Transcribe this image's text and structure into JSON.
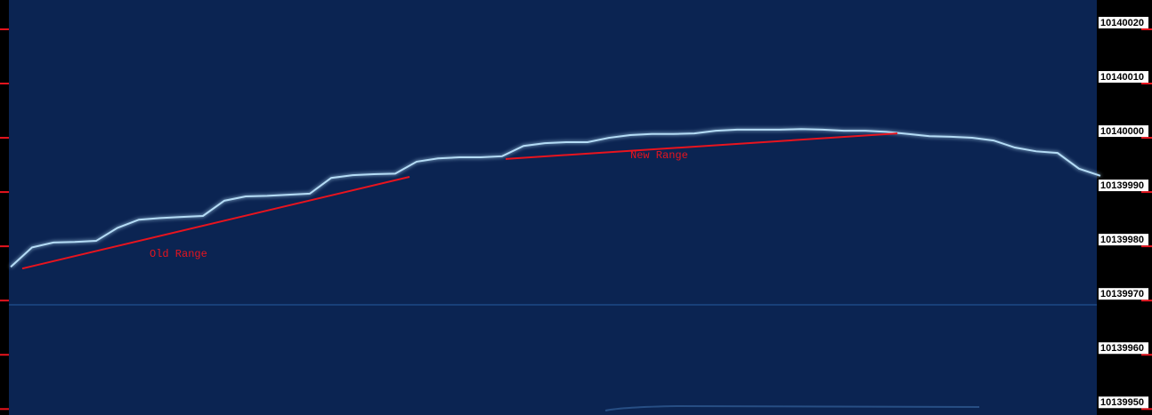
{
  "chart_data": {
    "type": "line",
    "categories": [
      null,
      null,
      null,
      null,
      null,
      null,
      null,
      null,
      null,
      null,
      null,
      null,
      null,
      null,
      null,
      null,
      null,
      null,
      null,
      null,
      null,
      null,
      null,
      null,
      null,
      null,
      null,
      null,
      null,
      null,
      null,
      null,
      null,
      null,
      null,
      null,
      null,
      null,
      null,
      null,
      null,
      null,
      null,
      null,
      null,
      null,
      null,
      null,
      null,
      null,
      null,
      null
    ],
    "series": [
      {
        "color": "#b4dcf6",
        "values": [
          10139976.2,
          10139979.8,
          10139980.7,
          10139980.8,
          10139981.0,
          10139983.4,
          10139984.9,
          10139985.2,
          10139985.4,
          10139985.6,
          10139988.4,
          10139989.2,
          10139989.3,
          10139989.5,
          10139989.7,
          10139992.6,
          10139993.1,
          10139993.3,
          10139993.4,
          10139995.6,
          10139996.2,
          10139996.4,
          10139996.4,
          10139996.6,
          10139998.5,
          10139999.0,
          10139999.2,
          10139999.2,
          10140000.0,
          10140000.5,
          10140000.7,
          10140000.7,
          10140000.8,
          10140001.3,
          10140001.5,
          10140001.5,
          10140001.5,
          10140001.6,
          10140001.5,
          10140001.3,
          10140001.3,
          10140001.1,
          10140000.7,
          10140000.3,
          10140000.2,
          10140000.0,
          10139999.5,
          10139998.2,
          10139997.5,
          10139997.2,
          10139994.3,
          10139993.0
        ]
      }
    ],
    "annotations": [
      {
        "text": "Old Range",
        "color": "#e8141e",
        "values": [
          10139975.9,
          10139992.8
        ]
      },
      {
        "text": "New Range",
        "color": "#e8141e",
        "values": [
          10139996.1,
          10140000.8
        ]
      }
    ],
    "ylim": [
      10139948.9,
      10140025.4
    ],
    "yticks": [
      10139950,
      10139960,
      10139970,
      10139980,
      10139990,
      10140000,
      10140010,
      10140020
    ],
    "tick_color": "#e8141e",
    "grid": false
  }
}
